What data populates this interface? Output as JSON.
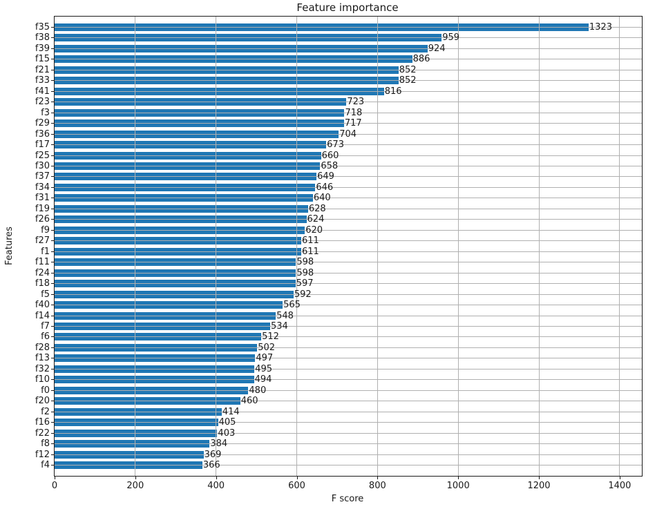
{
  "chart_data": {
    "type": "bar",
    "orientation": "horizontal",
    "title": "Feature importance",
    "xlabel": "F score",
    "ylabel": "Features",
    "legend": null,
    "grid": true,
    "bar_color": "#1f77b4",
    "grid_color": "#b0b0b0",
    "text_color": "#1a1a1a",
    "xlim": [
      0,
      1455
    ],
    "x_ticks": [
      0,
      200,
      400,
      600,
      800,
      1000,
      1200,
      1400
    ],
    "categories": [
      "f35",
      "f38",
      "f39",
      "f15",
      "f21",
      "f33",
      "f41",
      "f23",
      "f3",
      "f29",
      "f36",
      "f17",
      "f25",
      "f30",
      "f37",
      "f34",
      "f31",
      "f19",
      "f26",
      "f9",
      "f27",
      "f1",
      "f11",
      "f24",
      "f18",
      "f5",
      "f40",
      "f14",
      "f7",
      "f6",
      "f28",
      "f13",
      "f32",
      "f10",
      "f0",
      "f20",
      "f2",
      "f16",
      "f22",
      "f8",
      "f12",
      "f4"
    ],
    "values": [
      1323,
      959,
      924,
      886,
      852,
      852,
      816,
      723,
      718,
      717,
      704,
      673,
      660,
      658,
      649,
      646,
      640,
      628,
      624,
      620,
      611,
      611,
      598,
      598,
      597,
      592,
      565,
      548,
      534,
      512,
      502,
      497,
      495,
      494,
      480,
      460,
      414,
      405,
      403,
      384,
      369,
      366
    ]
  }
}
